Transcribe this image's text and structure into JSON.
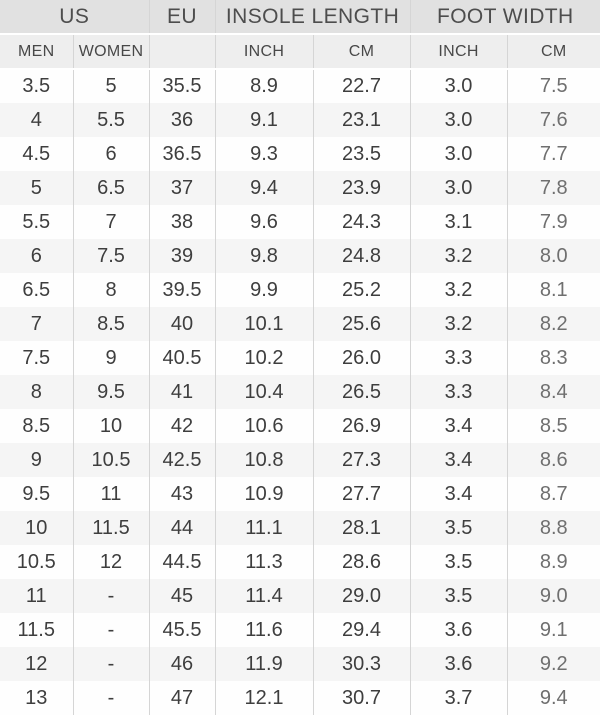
{
  "table": {
    "groups": [
      {
        "label": "US",
        "span": 2
      },
      {
        "label": "EU",
        "span": 1
      },
      {
        "label": "INSOLE LENGTH",
        "span": 2
      },
      {
        "label": "FOOT WIDTH",
        "span": 2
      }
    ],
    "subheaders": [
      "MEN",
      "WOMEN",
      "",
      "INCH",
      "CM",
      "INCH",
      "CM"
    ],
    "rows": [
      [
        "3.5",
        "5",
        "35.5",
        "8.9",
        "22.7",
        "3.0",
        "7.5"
      ],
      [
        "4",
        "5.5",
        "36",
        "9.1",
        "23.1",
        "3.0",
        "7.6"
      ],
      [
        "4.5",
        "6",
        "36.5",
        "9.3",
        "23.5",
        "3.0",
        "7.7"
      ],
      [
        "5",
        "6.5",
        "37",
        "9.4",
        "23.9",
        "3.0",
        "7.8"
      ],
      [
        "5.5",
        "7",
        "38",
        "9.6",
        "24.3",
        "3.1",
        "7.9"
      ],
      [
        "6",
        "7.5",
        "39",
        "9.8",
        "24.8",
        "3.2",
        "8.0"
      ],
      [
        "6.5",
        "8",
        "39.5",
        "9.9",
        "25.2",
        "3.2",
        "8.1"
      ],
      [
        "7",
        "8.5",
        "40",
        "10.1",
        "25.6",
        "3.2",
        "8.2"
      ],
      [
        "7.5",
        "9",
        "40.5",
        "10.2",
        "26.0",
        "3.3",
        "8.3"
      ],
      [
        "8",
        "9.5",
        "41",
        "10.4",
        "26.5",
        "3.3",
        "8.4"
      ],
      [
        "8.5",
        "10",
        "42",
        "10.6",
        "26.9",
        "3.4",
        "8.5"
      ],
      [
        "9",
        "10.5",
        "42.5",
        "10.8",
        "27.3",
        "3.4",
        "8.6"
      ],
      [
        "9.5",
        "11",
        "43",
        "10.9",
        "27.7",
        "3.4",
        "8.7"
      ],
      [
        "10",
        "11.5",
        "44",
        "11.1",
        "28.1",
        "3.5",
        "8.8"
      ],
      [
        "10.5",
        "12",
        "44.5",
        "11.3",
        "28.6",
        "3.5",
        "8.9"
      ],
      [
        "11",
        "-",
        "45",
        "11.4",
        "29.0",
        "3.5",
        "9.0"
      ],
      [
        "11.5",
        "-",
        "45.5",
        "11.6",
        "29.4",
        "3.6",
        "9.1"
      ],
      [
        "12",
        "-",
        "46",
        "11.9",
        "30.3",
        "3.6",
        "9.2"
      ],
      [
        "13",
        "-",
        "47",
        "12.1",
        "30.7",
        "3.7",
        "9.4"
      ]
    ]
  },
  "colors": {
    "group_header_bg": "#e1e1e1",
    "sub_header_bg": "#eeeeee",
    "row_even_bg": "#f5f5f5",
    "row_odd_bg": "#fefefe",
    "column_border": "#d5d5d5",
    "text_primary": "#3e3e3e",
    "text_last_column": "#6f6f6f"
  },
  "chart_data": {
    "type": "table",
    "columns": [
      "US MEN",
      "US WOMEN",
      "EU",
      "INSOLE LENGTH INCH",
      "INSOLE LENGTH CM",
      "FOOT WIDTH INCH",
      "FOOT WIDTH CM"
    ],
    "rows": [
      [
        "3.5",
        "5",
        "35.5",
        "8.9",
        "22.7",
        "3.0",
        "7.5"
      ],
      [
        "4",
        "5.5",
        "36",
        "9.1",
        "23.1",
        "3.0",
        "7.6"
      ],
      [
        "4.5",
        "6",
        "36.5",
        "9.3",
        "23.5",
        "3.0",
        "7.7"
      ],
      [
        "5",
        "6.5",
        "37",
        "9.4",
        "23.9",
        "3.0",
        "7.8"
      ],
      [
        "5.5",
        "7",
        "38",
        "9.6",
        "24.3",
        "3.1",
        "7.9"
      ],
      [
        "6",
        "7.5",
        "39",
        "9.8",
        "24.8",
        "3.2",
        "8.0"
      ],
      [
        "6.5",
        "8",
        "39.5",
        "9.9",
        "25.2",
        "3.2",
        "8.1"
      ],
      [
        "7",
        "8.5",
        "40",
        "10.1",
        "25.6",
        "3.2",
        "8.2"
      ],
      [
        "7.5",
        "9",
        "40.5",
        "10.2",
        "26.0",
        "3.3",
        "8.3"
      ],
      [
        "8",
        "9.5",
        "41",
        "10.4",
        "26.5",
        "3.3",
        "8.4"
      ],
      [
        "8.5",
        "10",
        "42",
        "10.6",
        "26.9",
        "3.4",
        "8.5"
      ],
      [
        "9",
        "10.5",
        "42.5",
        "10.8",
        "27.3",
        "3.4",
        "8.6"
      ],
      [
        "9.5",
        "11",
        "43",
        "10.9",
        "27.7",
        "3.4",
        "8.7"
      ],
      [
        "10",
        "11.5",
        "44",
        "11.1",
        "28.1",
        "3.5",
        "8.8"
      ],
      [
        "10.5",
        "12",
        "44.5",
        "11.3",
        "28.6",
        "3.5",
        "8.9"
      ],
      [
        "11",
        "-",
        "45",
        "11.4",
        "29.0",
        "3.5",
        "9.0"
      ],
      [
        "11.5",
        "-",
        "45.5",
        "11.6",
        "29.4",
        "3.6",
        "9.1"
      ],
      [
        "12",
        "-",
        "46",
        "11.9",
        "30.3",
        "3.6",
        "9.2"
      ],
      [
        "13",
        "-",
        "47",
        "12.1",
        "30.7",
        "3.7",
        "9.4"
      ]
    ]
  }
}
